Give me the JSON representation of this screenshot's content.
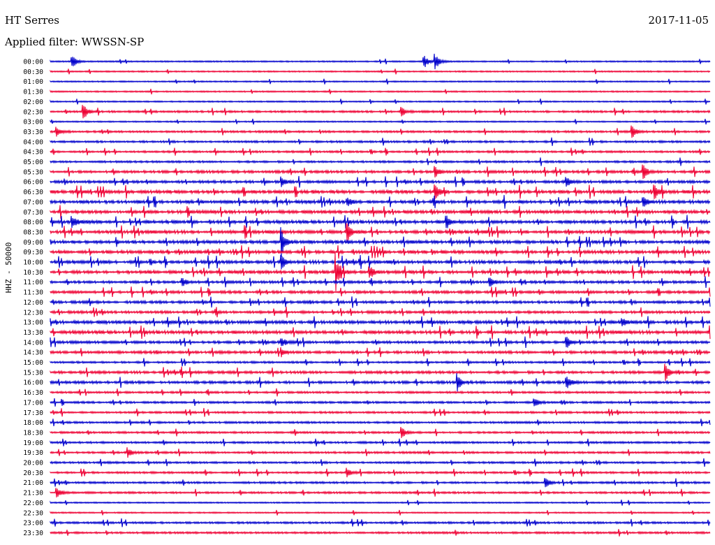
{
  "header": {
    "station": "HT Serres",
    "date": "2017-11-05",
    "filter": "Applied filter: WWSSN-SP"
  },
  "chart_data": {
    "type": "line",
    "title": "HT Serres",
    "subtitle": "Applied filter: WWSSN-SP",
    "ylabel": "HHZ - 50000",
    "xlabel": "",
    "grid": false,
    "colors": [
      "#0000cc",
      "#ee0033"
    ],
    "rows": [
      "00:00",
      "00:30",
      "01:00",
      "01:30",
      "02:00",
      "02:30",
      "03:00",
      "03:30",
      "04:00",
      "04:30",
      "05:00",
      "05:30",
      "06:00",
      "06:30",
      "07:00",
      "07:30",
      "08:00",
      "08:30",
      "09:00",
      "09:30",
      "10:00",
      "10:30",
      "11:00",
      "11:30",
      "12:00",
      "12:30",
      "13:00",
      "13:30",
      "14:00",
      "14:30",
      "15:00",
      "15:30",
      "16:00",
      "16:30",
      "17:00",
      "17:30",
      "18:00",
      "18:30",
      "19:00",
      "19:30",
      "20:00",
      "20:30",
      "21:00",
      "21:30",
      "22:00",
      "22:30",
      "23:00",
      "23:30"
    ],
    "activity": [
      1,
      1,
      1,
      1,
      1,
      2,
      1,
      2,
      2,
      2,
      2,
      3,
      3,
      4,
      4,
      4,
      4,
      4,
      4,
      4,
      4,
      4,
      3,
      3,
      3,
      3,
      4,
      4,
      3,
      3,
      2,
      3,
      3,
      2,
      2,
      2,
      2,
      2,
      2,
      2,
      2,
      2,
      2,
      2,
      1,
      1,
      2,
      2
    ],
    "events": [
      {
        "row": 0,
        "minute": 1,
        "amp": 9
      },
      {
        "row": 0,
        "minute": 17,
        "amp": 10
      },
      {
        "row": 0,
        "minute": 17.5,
        "amp": 12
      },
      {
        "row": 5,
        "minute": 1.5,
        "amp": 11
      },
      {
        "row": 5,
        "minute": 16,
        "amp": 6
      },
      {
        "row": 7,
        "minute": 0.3,
        "amp": 7
      },
      {
        "row": 7,
        "minute": 26.5,
        "amp": 8
      },
      {
        "row": 11,
        "minute": 27,
        "amp": 9
      },
      {
        "row": 11,
        "minute": 17.5,
        "amp": 8
      },
      {
        "row": 12,
        "minute": 10.5,
        "amp": 7
      },
      {
        "row": 12,
        "minute": 23.5,
        "amp": 8
      },
      {
        "row": 13,
        "minute": 17.5,
        "amp": 13
      },
      {
        "row": 13,
        "minute": 27.5,
        "amp": 9
      },
      {
        "row": 14,
        "minute": 13.5,
        "amp": 7
      },
      {
        "row": 14,
        "minute": 27,
        "amp": 7
      },
      {
        "row": 16,
        "minute": 1,
        "amp": 9
      },
      {
        "row": 16,
        "minute": 18,
        "amp": 10
      },
      {
        "row": 17,
        "minute": 13.5,
        "amp": 16
      },
      {
        "row": 18,
        "minute": 10.5,
        "amp": 20
      },
      {
        "row": 20,
        "minute": 10.5,
        "amp": 10
      },
      {
        "row": 21,
        "minute": 13,
        "amp": 20
      },
      {
        "row": 21,
        "minute": 14.5,
        "amp": 10
      },
      {
        "row": 22,
        "minute": 6,
        "amp": 7
      },
      {
        "row": 22,
        "minute": 20,
        "amp": 7
      },
      {
        "row": 26,
        "minute": 26,
        "amp": 8
      },
      {
        "row": 28,
        "minute": 10.5,
        "amp": 7
      },
      {
        "row": 28,
        "minute": 23.5,
        "amp": 8
      },
      {
        "row": 29,
        "minute": 10.5,
        "amp": 6
      },
      {
        "row": 31,
        "minute": 28,
        "amp": 12
      },
      {
        "row": 32,
        "minute": 18.5,
        "amp": 12
      },
      {
        "row": 32,
        "minute": 23.5,
        "amp": 10
      },
      {
        "row": 34,
        "minute": 22,
        "amp": 8
      },
      {
        "row": 37,
        "minute": 16,
        "amp": 8
      },
      {
        "row": 39,
        "minute": 3.5,
        "amp": 8
      },
      {
        "row": 41,
        "minute": 13.5,
        "amp": 6
      },
      {
        "row": 42,
        "minute": 22.5,
        "amp": 9
      },
      {
        "row": 43,
        "minute": 0.3,
        "amp": 8
      }
    ]
  }
}
